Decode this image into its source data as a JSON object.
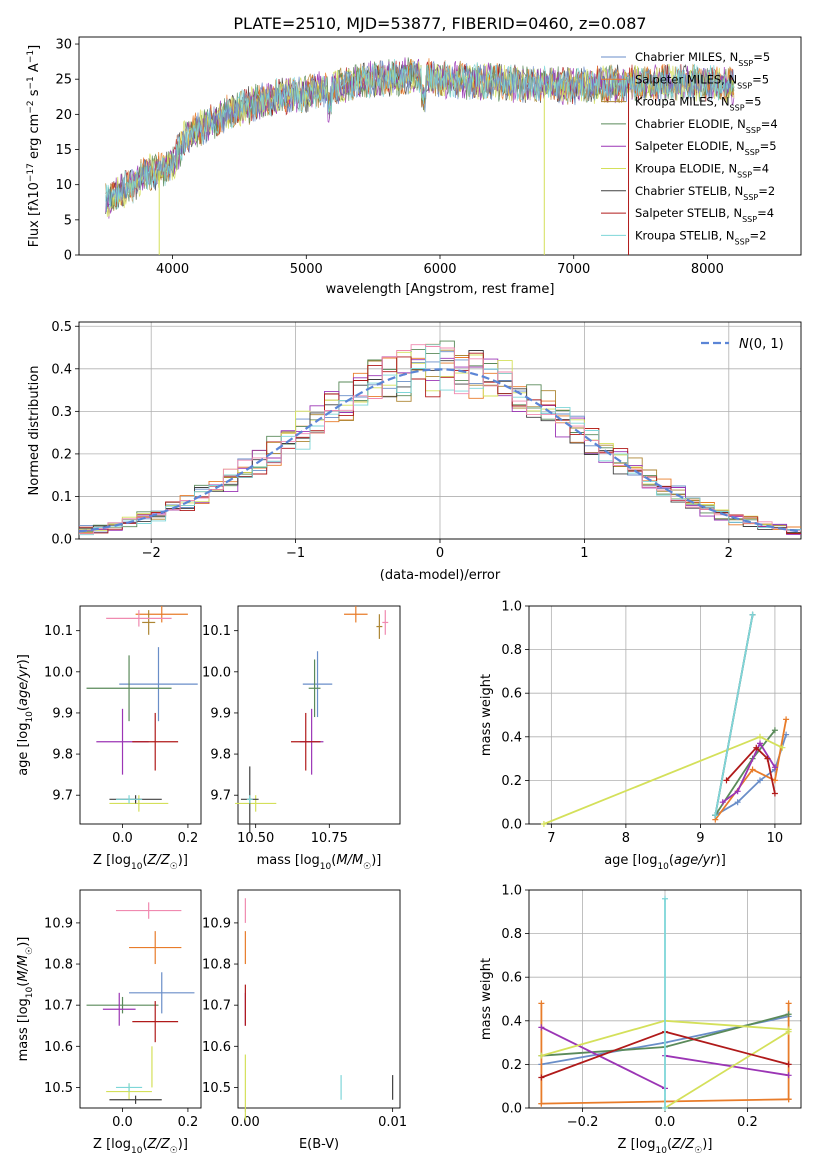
{
  "title": "PLATE=2510, MJD=53877, FIBERID=0460, z=0.087",
  "colors": [
    "#6a8ec8",
    "#e87c2a",
    "#ad8634",
    "#5a8a5a",
    "#9b35b5",
    "#d4e05a",
    "#404040",
    "#b01a1a",
    "#7ed6d8",
    "#f08ab0"
  ],
  "chart_data": [
    {
      "id": "spectrum",
      "type": "line",
      "xlabel": "wavelength [Angstrom, rest frame]",
      "ylabel": "Flux [fλ10⁻¹⁷ erg cm⁻² s⁻¹ A⁻¹]",
      "xlim": [
        3300,
        8700
      ],
      "ylim": [
        0,
        31
      ],
      "xticks": [
        4000,
        5000,
        6000,
        7000,
        8000
      ],
      "yticks": [
        0,
        5,
        10,
        15,
        20,
        25,
        30
      ],
      "grid": false,
      "legend_position": "top-right",
      "series": [
        {
          "name": "Chabrier MILES, N",
          "sub": "SSP",
          "tail": "=5"
        },
        {
          "name": "Salpeter MILES, N",
          "sub": "SSP",
          "tail": "=5"
        },
        {
          "name": "Kroupa MILES, N",
          "sub": "SSP",
          "tail": "=5"
        },
        {
          "name": "Chabrier ELODIE, N",
          "sub": "SSP",
          "tail": "=4"
        },
        {
          "name": "Salpeter ELODIE, N",
          "sub": "SSP",
          "tail": "=5"
        },
        {
          "name": "Kroupa ELODIE, N",
          "sub": "SSP",
          "tail": "=4"
        },
        {
          "name": "Chabrier STELIB, N",
          "sub": "SSP",
          "tail": "=2"
        },
        {
          "name": "Salpeter STELIB, N",
          "sub": "SSP",
          "tail": "=4"
        },
        {
          "name": "Kroupa STELIB, N",
          "sub": "SSP",
          "tail": "=2"
        }
      ],
      "continuum": {
        "x": [
          3500,
          3600,
          3700,
          3800,
          3900,
          4000,
          4100,
          4200,
          4300,
          4400,
          4600,
          4800,
          5000,
          5200,
          5500,
          5800,
          6000,
          6500,
          7000,
          7500,
          8000,
          8200
        ],
        "y": [
          7.5,
          9,
          10,
          11.5,
          12,
          13,
          17,
          18,
          19,
          20,
          21.5,
          22.5,
          23,
          24,
          25,
          25.5,
          25,
          24.5,
          24,
          24.5,
          24.5,
          24
        ]
      }
    },
    {
      "id": "residuals",
      "type": "histogram",
      "xlabel": "(data-model)/error",
      "ylabel": "Normed distribution",
      "xlim": [
        -2.5,
        2.5
      ],
      "ylim": [
        0,
        0.51
      ],
      "xticks": [
        -2,
        -1,
        0,
        1,
        2
      ],
      "yticks": [
        0.0,
        0.1,
        0.2,
        0.3,
        0.4,
        0.5
      ],
      "grid": true,
      "legend_position": "top-right",
      "legend_label": "N(0, 1)",
      "bin_width": 0.1
    },
    {
      "id": "age-vs-Z",
      "type": "scatter",
      "xlabel": "Z [log10(Z/Z☉)]",
      "ylabel": "age [log10(age/yr)]",
      "xlim": [
        -0.13,
        0.24
      ],
      "ylim": [
        9.63,
        10.16
      ],
      "xticks": [
        0.0,
        0.2
      ],
      "yticks": [
        9.7,
        9.8,
        9.9,
        10.0,
        10.1
      ],
      "grid": false,
      "points": [
        {
          "series": 0,
          "x": 0.11,
          "y": 9.97,
          "xerr": 0.12,
          "yerr": 0.09
        },
        {
          "series": 1,
          "x": 0.12,
          "y": 10.14,
          "xerr": 0.08,
          "yerr": 0.02
        },
        {
          "series": 2,
          "x": 0.08,
          "y": 10.12,
          "xerr": 0.02,
          "yerr": 0.03
        },
        {
          "series": 3,
          "x": 0.02,
          "y": 9.96,
          "xerr": 0.13,
          "yerr": 0.08
        },
        {
          "series": 4,
          "x": 0.0,
          "y": 9.83,
          "xerr": 0.08,
          "yerr": 0.08
        },
        {
          "series": 5,
          "x": 0.05,
          "y": 9.68,
          "xerr": 0.09,
          "yerr": 0.02
        },
        {
          "series": 6,
          "x": 0.04,
          "y": 9.69,
          "xerr": 0.08,
          "yerr": 0.01
        },
        {
          "series": 7,
          "x": 0.1,
          "y": 9.83,
          "xerr": 0.07,
          "yerr": 0.07
        },
        {
          "series": 8,
          "x": 0.02,
          "y": 9.69,
          "xerr": 0.04,
          "yerr": 0.01
        },
        {
          "series": 9,
          "x": 0.05,
          "y": 10.13,
          "xerr": 0.1,
          "yerr": 0.02
        }
      ]
    },
    {
      "id": "age-vs-mass",
      "type": "scatter",
      "xlabel": "mass [log10(M/M☉)]",
      "ylabel": "",
      "xlim": [
        10.44,
        10.99
      ],
      "ylim": [
        9.63,
        10.16
      ],
      "xticks": [
        10.5,
        10.75
      ],
      "xtick_labels": [
        "10.50",
        "10.75"
      ],
      "yticks": [
        9.7,
        9.8,
        9.9,
        10.0,
        10.1
      ],
      "grid": false,
      "points": [
        {
          "series": 0,
          "x": 10.71,
          "y": 9.97,
          "xerr": 0.05,
          "yerr": 0.08
        },
        {
          "series": 1,
          "x": 10.84,
          "y": 10.14,
          "xerr": 0.04,
          "yerr": 0.02
        },
        {
          "series": 2,
          "x": 10.92,
          "y": 10.11,
          "xerr": 0.01,
          "yerr": 0.03
        },
        {
          "series": 3,
          "x": 10.7,
          "y": 9.96,
          "xerr": 0.02,
          "yerr": 0.07
        },
        {
          "series": 4,
          "x": 10.69,
          "y": 9.83,
          "xerr": 0.04,
          "yerr": 0.08
        },
        {
          "series": 5,
          "x": 10.5,
          "y": 9.68,
          "xerr": 0.07,
          "yerr": 0.02
        },
        {
          "series": 6,
          "x": 10.48,
          "y": 9.69,
          "xerr": 0.03,
          "yerr": 0.08
        },
        {
          "series": 7,
          "x": 10.67,
          "y": 9.83,
          "xerr": 0.05,
          "yerr": 0.07
        },
        {
          "series": 8,
          "x": 10.48,
          "y": 9.69,
          "xerr": 0.01,
          "yerr": 0.01
        },
        {
          "series": 9,
          "x": 10.94,
          "y": 10.12,
          "xerr": 0.01,
          "yerr": 0.03
        }
      ]
    },
    {
      "id": "weight-vs-age",
      "type": "line",
      "xlabel": "age [log10(age/yr)]",
      "ylabel": "mass weight",
      "xlim": [
        6.7,
        10.35
      ],
      "ylim": [
        0,
        1.0
      ],
      "xticks": [
        7,
        8,
        9,
        10
      ],
      "yticks": [
        0.0,
        0.2,
        0.4,
        0.6,
        0.8,
        1.0
      ],
      "grid": true,
      "lines": [
        {
          "series": 0,
          "x": [
            9.2,
            9.5,
            9.8,
            10.0,
            10.15
          ],
          "y": [
            0.04,
            0.1,
            0.2,
            0.25,
            0.41
          ]
        },
        {
          "series": 1,
          "x": [
            9.2,
            9.7,
            10.0,
            10.15
          ],
          "y": [
            0.02,
            0.25,
            0.2,
            0.48
          ]
        },
        {
          "series": 3,
          "x": [
            9.2,
            9.7,
            10.0
          ],
          "y": [
            0.04,
            0.3,
            0.43
          ]
        },
        {
          "series": 4,
          "x": [
            9.3,
            9.5,
            9.8,
            10.0
          ],
          "y": [
            0.1,
            0.15,
            0.37,
            0.26
          ]
        },
        {
          "series": 5,
          "x": [
            6.9,
            9.8,
            10.1
          ],
          "y": [
            0.0,
            0.4,
            0.35
          ]
        },
        {
          "series": 6,
          "x": [
            9.2,
            9.7
          ],
          "y": [
            0.04,
            0.96
          ]
        },
        {
          "series": 7,
          "x": [
            9.35,
            9.75,
            9.9,
            10.0
          ],
          "y": [
            0.2,
            0.35,
            0.3,
            0.14
          ]
        },
        {
          "series": 8,
          "x": [
            9.2,
            9.7
          ],
          "y": [
            0.04,
            0.96
          ]
        }
      ]
    },
    {
      "id": "mass-vs-Z",
      "type": "scatter",
      "xlabel": "Z [log10(Z/Z☉)]",
      "ylabel": "mass [log10(M/M☉)]",
      "xlim": [
        -0.13,
        0.24
      ],
      "ylim": [
        10.45,
        10.98
      ],
      "xticks": [
        0.0,
        0.2
      ],
      "yticks": [
        10.5,
        10.6,
        10.7,
        10.8,
        10.9
      ],
      "grid": false,
      "points": [
        {
          "series": 0,
          "x": 0.12,
          "y": 10.73,
          "xerr": 0.1,
          "yerr": 0.05
        },
        {
          "series": 1,
          "x": 0.1,
          "y": 10.84,
          "xerr": 0.08,
          "yerr": 0.04
        },
        {
          "series": 3,
          "x": 0.0,
          "y": 10.7,
          "xerr": 0.11,
          "yerr": 0.02
        },
        {
          "series": 4,
          "x": -0.01,
          "y": 10.69,
          "xerr": 0.05,
          "yerr": 0.04
        },
        {
          "series": 5,
          "x": 0.02,
          "y": 10.49,
          "xerr": 0.07,
          "yerr": 0.02
        },
        {
          "series": 6,
          "x": 0.04,
          "y": 10.47,
          "xerr": 0.08,
          "yerr": 0.01
        },
        {
          "series": 7,
          "x": 0.1,
          "y": 10.66,
          "xerr": 0.07,
          "yerr": 0.05
        },
        {
          "series": 8,
          "x": 0.02,
          "y": 10.5,
          "xerr": 0.04,
          "yerr": 0.01
        },
        {
          "series": 9,
          "x": 0.08,
          "y": 10.93,
          "xerr": 0.1,
          "yerr": 0.02
        },
        {
          "series": 5,
          "x": 0.09,
          "y": 10.55,
          "xerr": 0.0,
          "yerr": 0.05
        }
      ]
    },
    {
      "id": "mass-vs-EBV",
      "type": "scatter",
      "xlabel": "E(B-V)",
      "ylabel": "",
      "xlim": [
        -0.0005,
        0.0105
      ],
      "ylim": [
        10.45,
        10.98
      ],
      "xticks": [
        0.0,
        0.01
      ],
      "xtick_labels": [
        "0.00",
        "0.01"
      ],
      "yticks": [
        10.5,
        10.6,
        10.7,
        10.8,
        10.9
      ],
      "grid": false,
      "points": [
        {
          "series": 1,
          "x": 0.0,
          "y": 10.84,
          "xerr": 0.0,
          "yerr": 0.04
        },
        {
          "series": 4,
          "x": 0.0,
          "y": 10.69,
          "xerr": 0.0,
          "yerr": 0.04
        },
        {
          "series": 5,
          "x": 0.0,
          "y": 10.5,
          "xerr": 0.0,
          "yerr": 0.08
        },
        {
          "series": 7,
          "x": 0.0,
          "y": 10.7,
          "xerr": 0.0,
          "yerr": 0.05
        },
        {
          "series": 9,
          "x": 0.0,
          "y": 10.93,
          "xerr": 0.0,
          "yerr": 0.03
        },
        {
          "series": 8,
          "x": 0.0065,
          "y": 10.5,
          "xerr": 0.0,
          "yerr": 0.03
        },
        {
          "series": 6,
          "x": 0.01,
          "y": 10.5,
          "xerr": 0.0,
          "yerr": 0.03
        }
      ]
    },
    {
      "id": "weight-vs-Z",
      "type": "line",
      "xlabel": "Z [log10(Z/Z☉)]",
      "ylabel": "mass weight",
      "xlim": [
        -0.33,
        0.33
      ],
      "ylim": [
        0,
        1.0
      ],
      "xticks": [
        -0.2,
        0.0,
        0.2
      ],
      "yticks": [
        0.0,
        0.2,
        0.4,
        0.6,
        0.8,
        1.0
      ],
      "grid": true,
      "lines": [
        {
          "series": 0,
          "x": [
            -0.3,
            0.0,
            0.3
          ],
          "y": [
            0.2,
            0.3,
            0.42
          ]
        },
        {
          "series": 1,
          "x": [
            -0.3,
            0.0,
            0.3
          ],
          "y": [
            0.02,
            0.03,
            0.04
          ]
        },
        {
          "series": 1,
          "x": [
            -0.3,
            -0.3
          ],
          "y": [
            0.02,
            0.48
          ]
        },
        {
          "series": 1,
          "x": [
            0.3,
            0.3
          ],
          "y": [
            0.04,
            0.48
          ]
        },
        {
          "series": 3,
          "x": [
            -0.3,
            0.0,
            0.3
          ],
          "y": [
            0.24,
            0.28,
            0.43
          ]
        },
        {
          "series": 4,
          "x": [
            -0.3,
            0.0
          ],
          "y": [
            0.37,
            0.09
          ]
        },
        {
          "series": 4,
          "x": [
            0.0,
            0.3
          ],
          "y": [
            0.24,
            0.15
          ]
        },
        {
          "series": 5,
          "x": [
            -0.3,
            0.0,
            0.3
          ],
          "y": [
            0.24,
            0.4,
            0.36
          ]
        },
        {
          "series": 5,
          "x": [
            0.0,
            0.3
          ],
          "y": [
            0.0,
            0.35
          ]
        },
        {
          "series": 7,
          "x": [
            -0.3,
            0.0,
            0.3
          ],
          "y": [
            0.14,
            0.35,
            0.2
          ]
        },
        {
          "series": 8,
          "x": [
            0.0,
            0.0
          ],
          "y": [
            0.0,
            0.96
          ]
        }
      ]
    }
  ]
}
